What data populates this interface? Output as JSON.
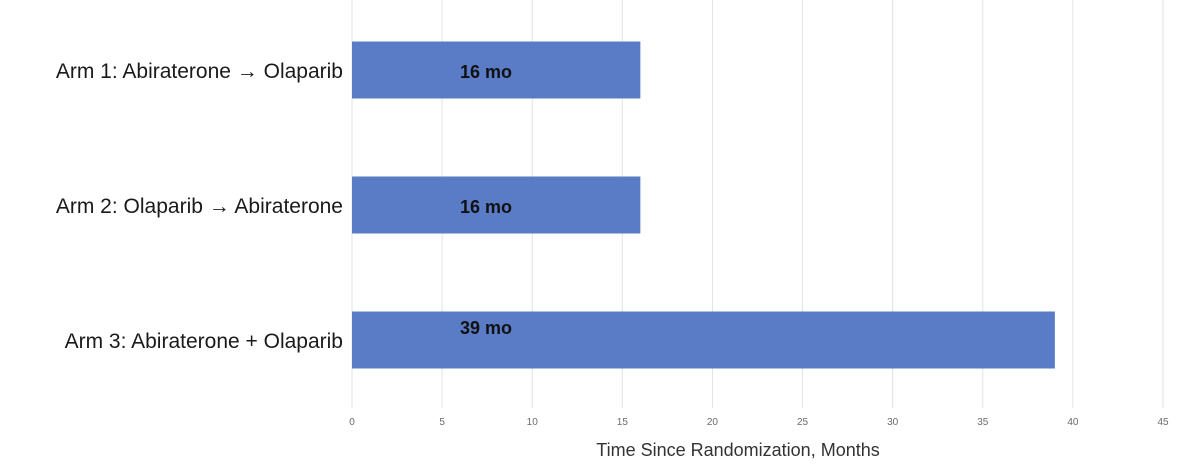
{
  "chart_data": {
    "type": "bar",
    "orientation": "horizontal",
    "categories": [
      "Arm 1: Abiraterone → Olaparib",
      "Arm 2: Olaparib → Abiraterone",
      "Arm 3: Abiraterone + Olaparib"
    ],
    "values": [
      16,
      16,
      39
    ],
    "data_labels": [
      "16 mo",
      "16 mo",
      "39 mo"
    ],
    "xlabel": "Time Since Randomization, Months",
    "ylabel": "",
    "xlim": [
      0,
      45
    ],
    "xticks": [
      0,
      5,
      10,
      15,
      20,
      25,
      30,
      35,
      40,
      45
    ],
    "grid": "vertical",
    "legend": "none",
    "bar_color": "#5a7cc6"
  }
}
